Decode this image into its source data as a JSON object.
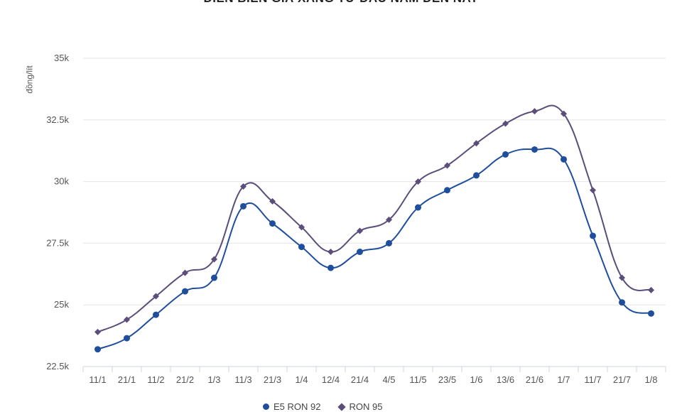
{
  "chart_data": {
    "type": "line",
    "title": "DIỄN BIẾN GIÁ XĂNG TỪ ĐẦU NĂM ĐẾN NAY",
    "xlabel": "",
    "ylabel": "đồng/lít",
    "ylim": [
      22500,
      35000
    ],
    "yticks": [
      22500,
      25000,
      27500,
      30000,
      32500,
      35000
    ],
    "ytick_labels": [
      "22.5k",
      "25k",
      "27.5k",
      "30k",
      "32.5k",
      "35k"
    ],
    "categories": [
      "11/1",
      "21/1",
      "11/2",
      "21/2",
      "1/3",
      "11/3",
      "21/3",
      "1/4",
      "12/4",
      "21/4",
      "4/5",
      "11/5",
      "23/5",
      "1/6",
      "13/6",
      "21/6",
      "1/7",
      "11/7",
      "21/7",
      "1/8"
    ],
    "series": [
      {
        "name": "E5 RON 92",
        "color": "#1f4e9c",
        "marker": "circle",
        "values": [
          23200,
          23650,
          24600,
          25550,
          26100,
          29000,
          28300,
          27350,
          26500,
          27150,
          27500,
          28950,
          29650,
          30250,
          31100,
          31300,
          30900,
          27800,
          25100,
          24650
        ]
      },
      {
        "name": "RON 95",
        "color": "#5b4e7a",
        "marker": "diamond",
        "values": [
          23900,
          24400,
          25350,
          26300,
          26850,
          29800,
          29200,
          28150,
          27150,
          28000,
          28450,
          30000,
          30650,
          31550,
          32350,
          32850,
          32750,
          29650,
          26100,
          25600
        ]
      }
    ],
    "grid": true,
    "legend_position": "bottom-center"
  }
}
